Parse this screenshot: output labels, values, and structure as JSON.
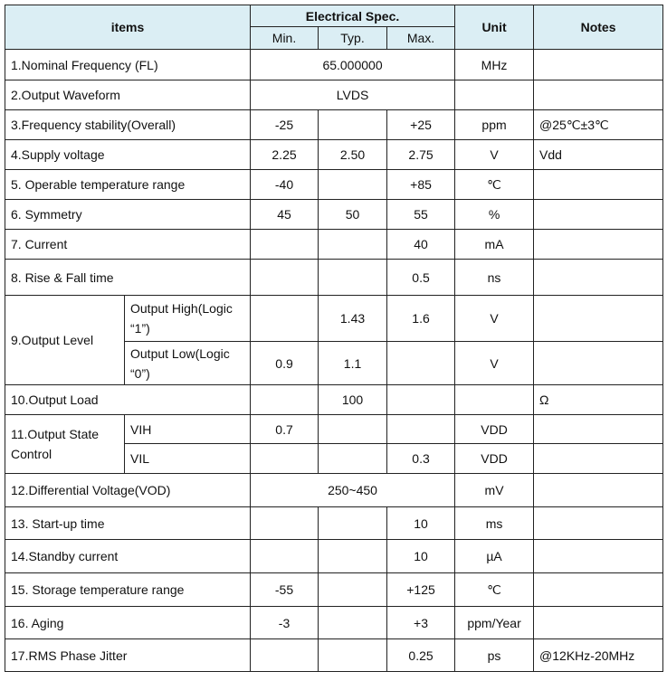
{
  "header": {
    "items": "items",
    "spec": "Electrical Spec.",
    "min": "Min.",
    "typ": "Typ.",
    "max": "Max.",
    "unit": "Unit",
    "notes": "Notes"
  },
  "rows": {
    "r1": {
      "item": "1.Nominal Frequency (FL)",
      "value": "65.000000",
      "unit": "MHz"
    },
    "r2": {
      "item": "2.Output Waveform",
      "value": "LVDS"
    },
    "r3": {
      "item": "3.Frequency stability(Overall)",
      "min": "-25",
      "max": "+25",
      "unit": "ppm",
      "notes": "@25℃±3℃"
    },
    "r4": {
      "item": "4.Supply voltage",
      "min": "2.25",
      "typ": "2.50",
      "max": "2.75",
      "unit": "V",
      "notes": "Vdd"
    },
    "r5": {
      "item": "5. Operable temperature range",
      "min": "-40",
      "max": "+85",
      "unit": "℃"
    },
    "r6": {
      "item": "6. Symmetry",
      "min": "45",
      "typ": "50",
      "max": "55",
      "unit": "%"
    },
    "r7": {
      "item": "7. Current",
      "max": "40",
      "unit": "mA"
    },
    "r8": {
      "item": "8. Rise & Fall time",
      "max": "0.5",
      "unit": "ns"
    },
    "r9": {
      "item": "9.Output Level",
      "high": {
        "label": "Output High(Logic “1”)",
        "typ": "1.43",
        "max": "1.6",
        "unit": "V"
      },
      "low": {
        "label": "Output Low(Logic “0”)",
        "min": "0.9",
        "typ": "1.1",
        "unit": "V"
      }
    },
    "r10": {
      "item": "10.Output Load",
      "typ": "100",
      "notes": "Ω"
    },
    "r11": {
      "item": "11.Output State Control",
      "vih": {
        "label": "VIH",
        "min": "0.7",
        "unit": "VDD"
      },
      "vil": {
        "label": "VIL",
        "max": "0.3",
        "unit": "VDD"
      }
    },
    "r12": {
      "item": "12.Differential Voltage(VOD)",
      "value": "250~450",
      "unit": "mV"
    },
    "r13": {
      "item": "13. Start-up time",
      "max": "10",
      "unit": "ms"
    },
    "r14": {
      "item": "14.Standby current",
      "max": "10",
      "unit": "µA"
    },
    "r15": {
      "item": "15. Storage temperature range",
      "min": "-55",
      "max": "+125",
      "unit": "℃"
    },
    "r16": {
      "item": "16. Aging",
      "min": "-3",
      "max": "+3",
      "unit": "ppm/Year"
    },
    "r17": {
      "item": "17.RMS Phase Jitter",
      "max": "0.25",
      "unit": "ps",
      "notes": "@12KHz-20MHz"
    }
  }
}
